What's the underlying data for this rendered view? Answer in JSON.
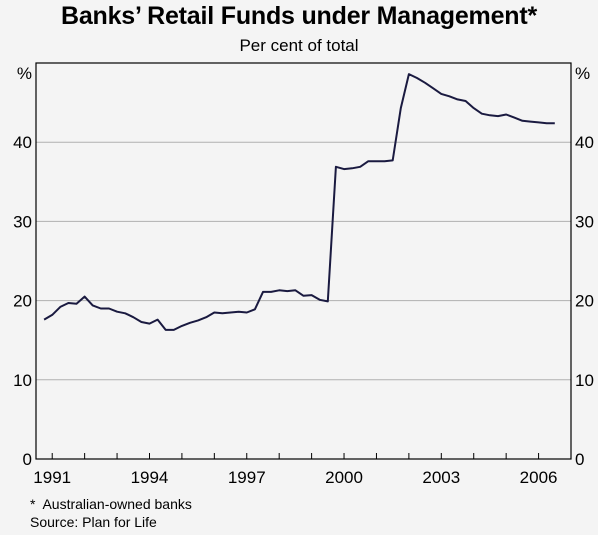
{
  "title": "Banks’ Retail Funds under Management*",
  "subtitle": "Per cent of total",
  "footnotes": {
    "asterisk": "*  Australian-owned banks",
    "source": "Source: Plan for Life"
  },
  "colors": {
    "line": "#1a1a40",
    "grid": "#b0b0b0",
    "frame": "#000000",
    "background": "#f4f4f4"
  },
  "chart_data": {
    "type": "line",
    "title": "Banks’ Retail Funds under Management*",
    "subtitle": "Per cent of total",
    "left_axis_unit": "%",
    "right_axis_unit": "%",
    "ylim": [
      0,
      50
    ],
    "y_ticks": [
      0,
      10,
      20,
      30,
      40
    ],
    "xlim": [
      1990.5,
      2007.0
    ],
    "x_ticks": [
      1991,
      1994,
      1997,
      2000,
      2003,
      2006
    ],
    "grid": true,
    "legend": "none",
    "series": [
      {
        "x": [
          1990.75,
          1991.0,
          1991.25,
          1991.5,
          1991.75,
          1992.0,
          1992.25,
          1992.5,
          1992.75,
          1993.0,
          1993.25,
          1993.5,
          1993.75,
          1994.0,
          1994.25,
          1994.5,
          1994.75,
          1995.0,
          1995.25,
          1995.5,
          1995.75,
          1996.0,
          1996.25,
          1996.5,
          1996.75,
          1997.0,
          1997.25,
          1997.5,
          1997.75,
          1998.0,
          1998.25,
          1998.5,
          1998.75,
          1999.0,
          1999.25,
          1999.5,
          1999.75,
          2000.0,
          2000.25,
          2000.5,
          2000.75,
          2001.0,
          2001.25,
          2001.5,
          2001.75,
          2002.0,
          2002.25,
          2002.5,
          2002.75,
          2003.0,
          2003.25,
          2003.5,
          2003.75,
          2004.0,
          2004.25,
          2004.5,
          2004.75,
          2005.0,
          2005.25,
          2005.5,
          2005.75,
          2006.0,
          2006.25,
          2006.5
        ],
        "y": [
          17.6,
          18.2,
          19.2,
          19.7,
          19.6,
          20.5,
          19.4,
          19.0,
          19.0,
          18.6,
          18.4,
          17.9,
          17.3,
          17.1,
          17.6,
          16.3,
          16.3,
          16.8,
          17.2,
          17.5,
          17.9,
          18.5,
          18.4,
          18.5,
          18.6,
          18.5,
          18.9,
          21.1,
          21.1,
          21.3,
          21.2,
          21.3,
          20.6,
          20.7,
          20.1,
          19.9,
          36.9,
          36.6,
          36.7,
          36.9,
          37.6,
          37.6,
          37.6,
          37.7,
          44.3,
          48.6,
          48.1,
          47.5,
          46.8,
          46.1,
          45.8,
          45.4,
          45.2,
          44.3,
          43.6,
          43.4,
          43.3,
          43.5,
          43.1,
          42.7,
          42.6,
          42.5,
          42.4,
          42.4
        ]
      }
    ]
  }
}
